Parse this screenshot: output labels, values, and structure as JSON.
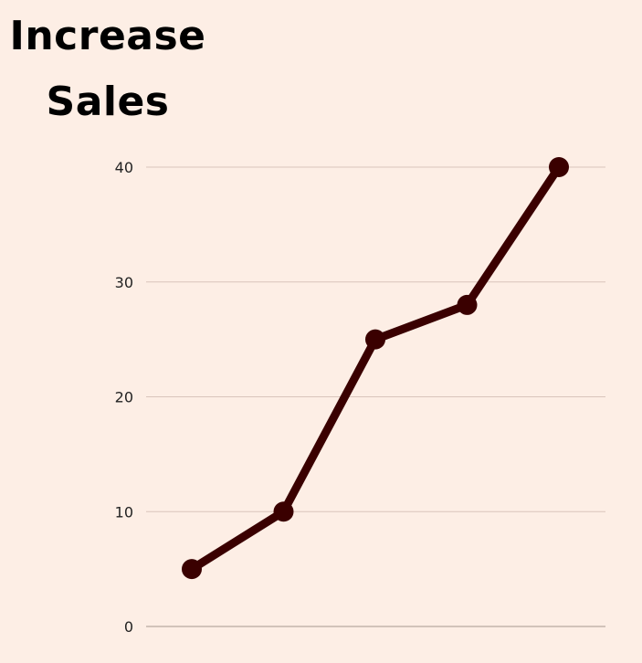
{
  "chart_data": {
    "type": "line",
    "title": "Increase Sales",
    "categories": [
      "",
      "",
      "",
      "",
      ""
    ],
    "values": [
      5,
      10,
      25,
      28,
      40
    ],
    "xlabel": "",
    "ylabel": "",
    "ylim": [
      0,
      40
    ],
    "yticks": [
      "0",
      "10",
      "20",
      "30",
      "40"
    ],
    "grid": true,
    "line_color": "#3a0000",
    "grid_color": "#d9c4bb",
    "background": "#fdeee5"
  }
}
